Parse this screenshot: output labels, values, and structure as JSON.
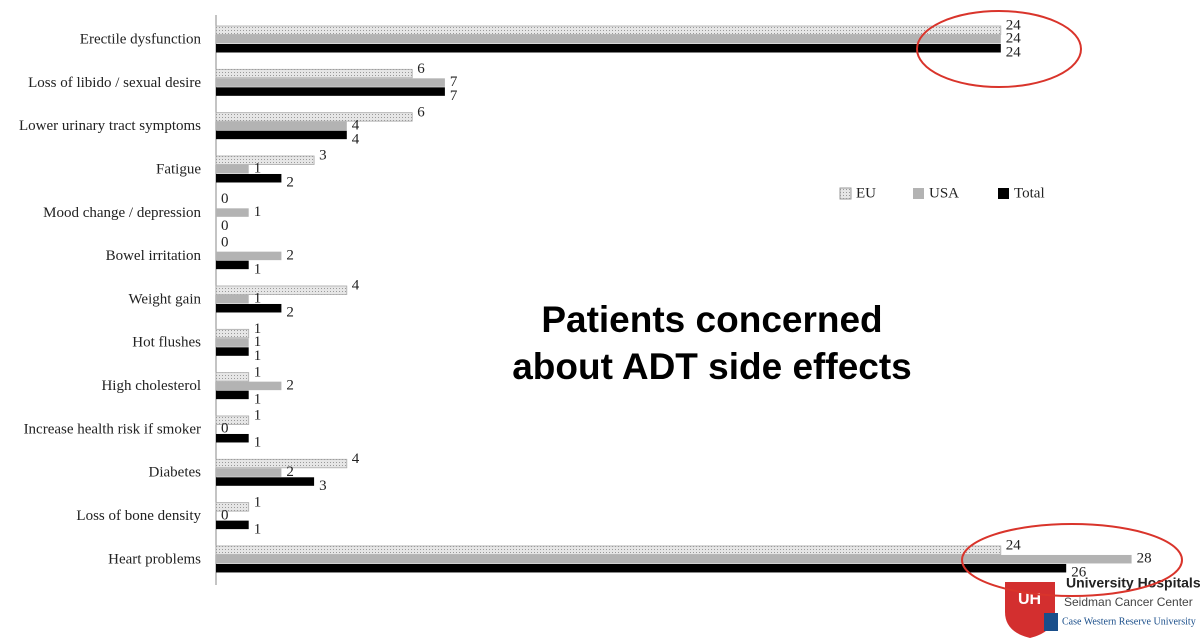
{
  "chart_data": {
    "type": "barh",
    "annotation": "Patients concerned about ADT side effects",
    "categories": [
      "Erectile dysfunction",
      "Loss of libido / sexual desire",
      "Lower urinary tract symptoms",
      "Fatigue",
      "Mood change / depression",
      "Bowel irritation",
      "Weight gain",
      "Hot flushes",
      "High cholesterol",
      "Increase health risk if smoker",
      "Diabetes",
      "Loss of bone density",
      "Heart problems"
    ],
    "series": [
      {
        "name": "EU",
        "color": "#e6e6e6",
        "values": [
          24,
          6,
          6,
          3,
          0,
          0,
          4,
          1,
          1,
          1,
          4,
          1,
          24
        ]
      },
      {
        "name": "USA",
        "color": "#b3b3b3",
        "values": [
          24,
          7,
          4,
          1,
          1,
          2,
          1,
          1,
          2,
          0,
          2,
          0,
          28
        ]
      },
      {
        "name": "Total",
        "color": "#000000",
        "values": [
          24,
          7,
          4,
          2,
          0,
          1,
          2,
          1,
          1,
          1,
          3,
          1,
          26
        ]
      }
    ],
    "xlim": [
      0,
      30
    ],
    "legend": "upper right",
    "grid": false
  },
  "logo": {
    "name": "University Hospitals",
    "center": "Seidman Cancer Center",
    "university": "Case Western Reserve University"
  }
}
